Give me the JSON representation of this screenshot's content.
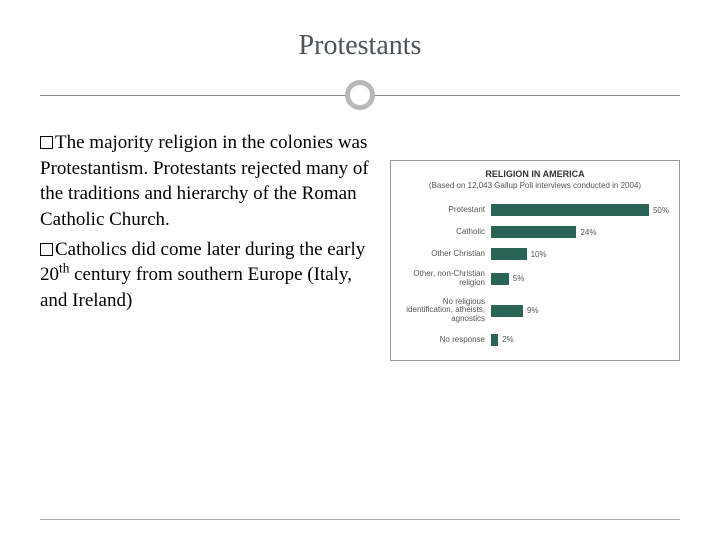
{
  "title": "Protestants",
  "bullets": [
    "The majority religion in the colonies was Protestantism. Protestants rejected many of the traditions and hierarchy of the Roman Catholic Church.",
    "Catholics did come later during the early 20{SUP_TH} century from southern Europe (Italy, and Ireland)"
  ],
  "chart": {
    "title": "RELIGION IN AMERICA",
    "subtitle": "(Based on 12,043 Gallup Poll interviews conducted in 2004)",
    "bar_color": "#2a6456",
    "max_value": 50,
    "rows": [
      {
        "label": "Protestant",
        "value": 50,
        "display": "50%"
      },
      {
        "label": "Catholic",
        "value": 24,
        "display": "24%"
      },
      {
        "label": "Other Christian",
        "value": 10,
        "display": "10%"
      },
      {
        "label": "Other, non-Christian religion",
        "value": 5,
        "display": "5%"
      },
      {
        "label": "No religious identification, atheists, agnostics",
        "value": 9,
        "display": "9%"
      },
      {
        "label": "No response",
        "value": 2,
        "display": "2%"
      }
    ]
  }
}
